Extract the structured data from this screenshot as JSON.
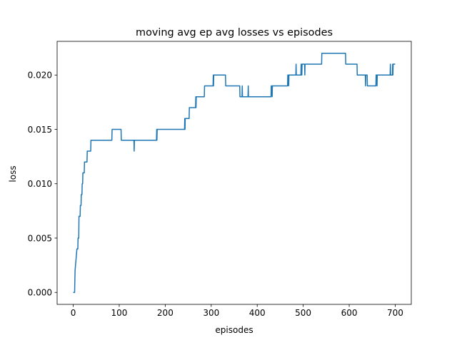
{
  "chart_data": {
    "type": "line",
    "title": "moving avg ep avg losses vs episodes",
    "xlabel": "episodes",
    "ylabel": "loss",
    "xlim": [
      -35,
      735
    ],
    "ylim": [
      -0.0011,
      0.0231
    ],
    "xticks": [
      0,
      100,
      200,
      300,
      400,
      500,
      600,
      700
    ],
    "xtick_labels": [
      "0",
      "100",
      "200",
      "300",
      "400",
      "500",
      "600",
      "700"
    ],
    "yticks": [
      0.0,
      0.005,
      0.01,
      0.015,
      0.02
    ],
    "ytick_labels": [
      "0.000",
      "0.005",
      "0.010",
      "0.015",
      "0.020"
    ],
    "grid": false,
    "series": [
      {
        "color": "#1f77b4",
        "points": [
          [
            0,
            0.0
          ],
          [
            3,
            0.0
          ],
          [
            4,
            0.002
          ],
          [
            6,
            0.003
          ],
          [
            8,
            0.004
          ],
          [
            10,
            0.004
          ],
          [
            10.5,
            0.005
          ],
          [
            12,
            0.005
          ],
          [
            12.5,
            0.007
          ],
          [
            15,
            0.007
          ],
          [
            15.5,
            0.008
          ],
          [
            17,
            0.008
          ],
          [
            17.5,
            0.009
          ],
          [
            19,
            0.009
          ],
          [
            19.5,
            0.01
          ],
          [
            20.5,
            0.01
          ],
          [
            21,
            0.011
          ],
          [
            24,
            0.011
          ],
          [
            24.5,
            0.012
          ],
          [
            30,
            0.012
          ],
          [
            30.5,
            0.013
          ],
          [
            38,
            0.013
          ],
          [
            38.5,
            0.014
          ],
          [
            84,
            0.014
          ],
          [
            84.5,
            0.015
          ],
          [
            104,
            0.015
          ],
          [
            104.5,
            0.014
          ],
          [
            132,
            0.014
          ],
          [
            132.5,
            0.013
          ],
          [
            133,
            0.014
          ],
          [
            181,
            0.014
          ],
          [
            181.5,
            0.015
          ],
          [
            182,
            0.014
          ],
          [
            182.5,
            0.015
          ],
          [
            242,
            0.015
          ],
          [
            242.5,
            0.016
          ],
          [
            243,
            0.015
          ],
          [
            243.5,
            0.016
          ],
          [
            252,
            0.016
          ],
          [
            252.5,
            0.017
          ],
          [
            266,
            0.017
          ],
          [
            266.5,
            0.018
          ],
          [
            267,
            0.017
          ],
          [
            267.5,
            0.018
          ],
          [
            285,
            0.018
          ],
          [
            285.5,
            0.019
          ],
          [
            304,
            0.019
          ],
          [
            304.5,
            0.02
          ],
          [
            305,
            0.019
          ],
          [
            305.5,
            0.02
          ],
          [
            331,
            0.02
          ],
          [
            331.5,
            0.019
          ],
          [
            362,
            0.019
          ],
          [
            362.5,
            0.018
          ],
          [
            367,
            0.018
          ],
          [
            367.5,
            0.019
          ],
          [
            368,
            0.018
          ],
          [
            380,
            0.018
          ],
          [
            380.5,
            0.019
          ],
          [
            381,
            0.018
          ],
          [
            430,
            0.018
          ],
          [
            430.5,
            0.019
          ],
          [
            432,
            0.019
          ],
          [
            432.5,
            0.018
          ],
          [
            433,
            0.019
          ],
          [
            466,
            0.019
          ],
          [
            466.5,
            0.02
          ],
          [
            468,
            0.02
          ],
          [
            468.5,
            0.019
          ],
          [
            469,
            0.02
          ],
          [
            484,
            0.02
          ],
          [
            484.5,
            0.021
          ],
          [
            485,
            0.02
          ],
          [
            495,
            0.02
          ],
          [
            495.5,
            0.021
          ],
          [
            496,
            0.02
          ],
          [
            497,
            0.02
          ],
          [
            497.5,
            0.021
          ],
          [
            503,
            0.021
          ],
          [
            503.5,
            0.02
          ],
          [
            504,
            0.021
          ],
          [
            540,
            0.021
          ],
          [
            540.5,
            0.022
          ],
          [
            592,
            0.022
          ],
          [
            592.5,
            0.021
          ],
          [
            617,
            0.021
          ],
          [
            617.5,
            0.02
          ],
          [
            635,
            0.02
          ],
          [
            635.5,
            0.019
          ],
          [
            636,
            0.02
          ],
          [
            639,
            0.02
          ],
          [
            639.5,
            0.019
          ],
          [
            658,
            0.019
          ],
          [
            658.5,
            0.02
          ],
          [
            660,
            0.02
          ],
          [
            660.5,
            0.019
          ],
          [
            661,
            0.02
          ],
          [
            689,
            0.02
          ],
          [
            689.5,
            0.021
          ],
          [
            690,
            0.02
          ],
          [
            694,
            0.02
          ],
          [
            694.5,
            0.021
          ],
          [
            695,
            0.02
          ],
          [
            695.5,
            0.021
          ],
          [
            700,
            0.021
          ]
        ]
      }
    ]
  }
}
